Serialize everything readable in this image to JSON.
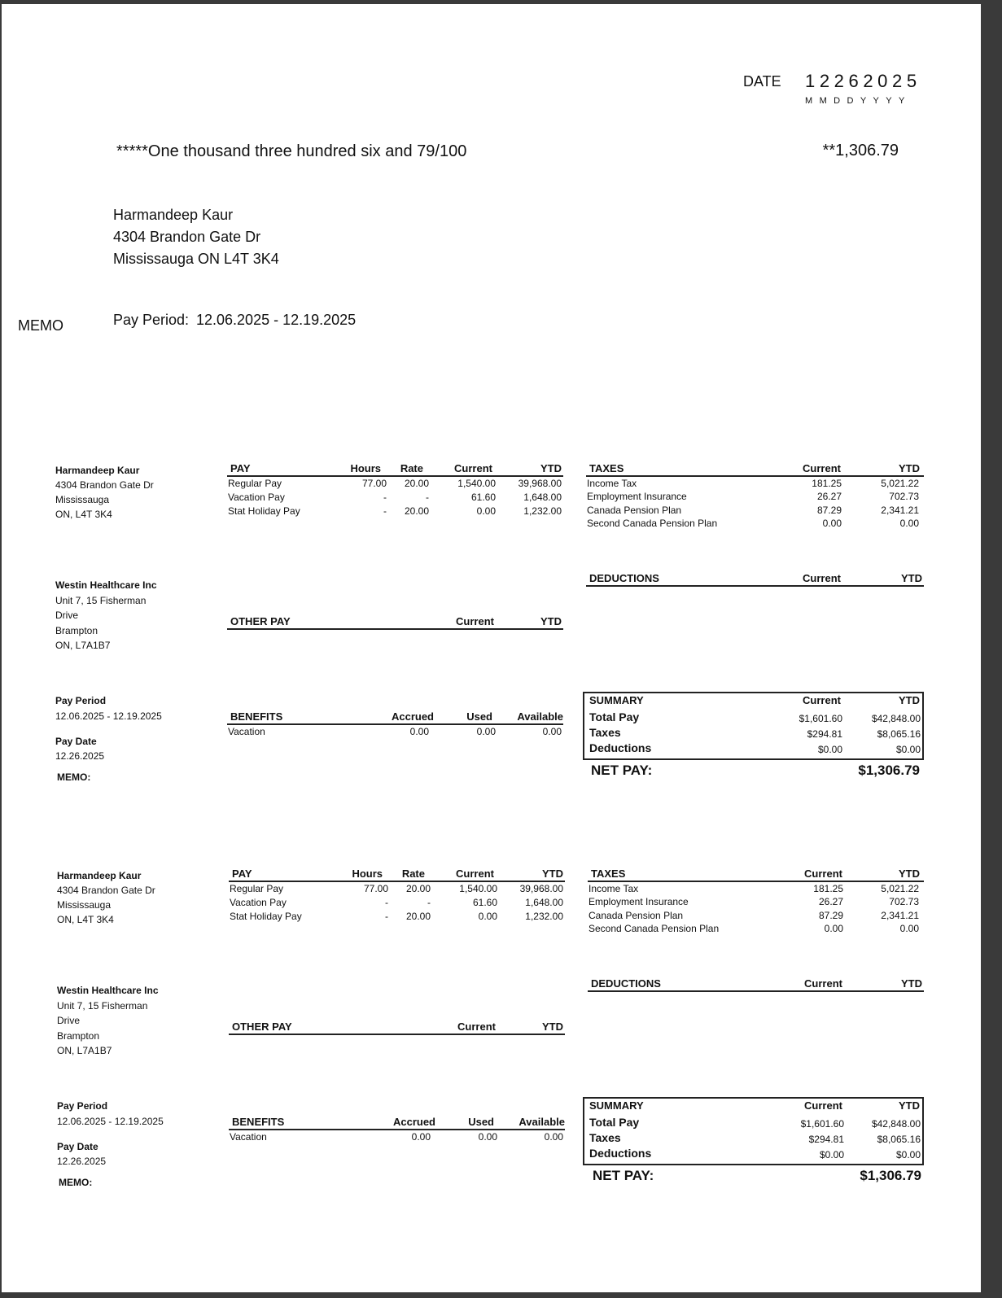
{
  "check": {
    "date_label": "DATE",
    "date_digits": "12262025",
    "date_format": "MMDDYYYY",
    "amount_words": "*****One thousand three hundred six and 79/100",
    "amount": "**1,306.79",
    "payee": [
      "Harmandeep Kaur",
      "4304 Brandon Gate Dr",
      "Mississauga ON L4T 3K4"
    ],
    "memo_label": "MEMO",
    "pay_period_label": "Pay Period:",
    "pay_period": "12.06.2025 - 12.19.2025"
  },
  "stubs": [
    {
      "employee": [
        "Harmandeep Kaur",
        "4304 Brandon Gate Dr",
        "Mississauga",
        "ON, L4T 3K4"
      ],
      "employer": [
        "Westin Healthcare Inc",
        "Unit 7, 15 Fisherman",
        "Drive",
        "Brampton",
        "ON, L7A1B7"
      ],
      "pay_period_label": "Pay Period",
      "pay_period": "12.06.2025 - 12.19.2025",
      "pay_date_label": "Pay Date",
      "pay_date": "12.26.2025",
      "memo_label": "MEMO:",
      "pay": {
        "headers": [
          "PAY",
          "Hours",
          "Rate",
          "Current",
          "YTD"
        ],
        "rows": [
          [
            "Regular Pay",
            "77.00",
            "20.00",
            "1,540.00",
            "39,968.00"
          ],
          [
            "Vacation Pay",
            "-",
            "-",
            "61.60",
            "1,648.00"
          ],
          [
            "Stat Holiday Pay",
            "-",
            "20.00",
            "0.00",
            "1,232.00"
          ]
        ]
      },
      "taxes": {
        "headers": [
          "TAXES",
          "Current",
          "YTD"
        ],
        "rows": [
          [
            "Income Tax",
            "181.25",
            "5,021.22"
          ],
          [
            "Employment Insurance",
            "26.27",
            "702.73"
          ],
          [
            "Canada Pension Plan",
            "87.29",
            "2,341.21"
          ],
          [
            "Second Canada Pension Plan",
            "0.00",
            "0.00"
          ]
        ]
      },
      "deductions": {
        "headers": [
          "DEDUCTIONS",
          "Current",
          "YTD"
        ]
      },
      "other_pay": {
        "headers": [
          "OTHER PAY",
          "Current",
          "YTD"
        ]
      },
      "benefits": {
        "headers": [
          "BENEFITS",
          "Accrued",
          "Used",
          "Available"
        ],
        "rows": [
          [
            "Vacation",
            "0.00",
            "0.00",
            "0.00"
          ]
        ]
      },
      "summary": {
        "headers": [
          "SUMMARY",
          "Current",
          "YTD"
        ],
        "rows": [
          [
            "Total Pay",
            "$1,601.60",
            "$42,848.00"
          ],
          [
            "Taxes",
            "$294.81",
            "$8,065.16"
          ],
          [
            "Deductions",
            "$0.00",
            "$0.00"
          ]
        ]
      },
      "net_pay_label": "NET PAY:",
      "net_pay": "$1,306.79"
    },
    {
      "employee": [
        "Harmandeep Kaur",
        "4304 Brandon Gate Dr",
        "Mississauga",
        "ON, L4T 3K4"
      ],
      "employer": [
        "Westin Healthcare Inc",
        "Unit 7, 15 Fisherman",
        "Drive",
        "Brampton",
        "ON, L7A1B7"
      ],
      "pay_period_label": "Pay Period",
      "pay_period": "12.06.2025 - 12.19.2025",
      "pay_date_label": "Pay Date",
      "pay_date": "12.26.2025",
      "memo_label": "MEMO:",
      "pay": {
        "headers": [
          "PAY",
          "Hours",
          "Rate",
          "Current",
          "YTD"
        ],
        "rows": [
          [
            "Regular Pay",
            "77.00",
            "20.00",
            "1,540.00",
            "39,968.00"
          ],
          [
            "Vacation Pay",
            "-",
            "-",
            "61.60",
            "1,648.00"
          ],
          [
            "Stat Holiday Pay",
            "-",
            "20.00",
            "0.00",
            "1,232.00"
          ]
        ]
      },
      "taxes": {
        "headers": [
          "TAXES",
          "Current",
          "YTD"
        ],
        "rows": [
          [
            "Income Tax",
            "181.25",
            "5,021.22"
          ],
          [
            "Employment Insurance",
            "26.27",
            "702.73"
          ],
          [
            "Canada Pension Plan",
            "87.29",
            "2,341.21"
          ],
          [
            "Second Canada Pension Plan",
            "0.00",
            "0.00"
          ]
        ]
      },
      "deductions": {
        "headers": [
          "DEDUCTIONS",
          "Current",
          "YTD"
        ]
      },
      "other_pay": {
        "headers": [
          "OTHER PAY",
          "Current",
          "YTD"
        ]
      },
      "benefits": {
        "headers": [
          "BENEFITS",
          "Accrued",
          "Used",
          "Available"
        ],
        "rows": [
          [
            "Vacation",
            "0.00",
            "0.00",
            "0.00"
          ]
        ]
      },
      "summary": {
        "headers": [
          "SUMMARY",
          "Current",
          "YTD"
        ],
        "rows": [
          [
            "Total Pay",
            "$1,601.60",
            "$42,848.00"
          ],
          [
            "Taxes",
            "$294.81",
            "$8,065.16"
          ],
          [
            "Deductions",
            "$0.00",
            "$0.00"
          ]
        ]
      },
      "net_pay_label": "NET PAY:",
      "net_pay": "$1,306.79"
    }
  ]
}
